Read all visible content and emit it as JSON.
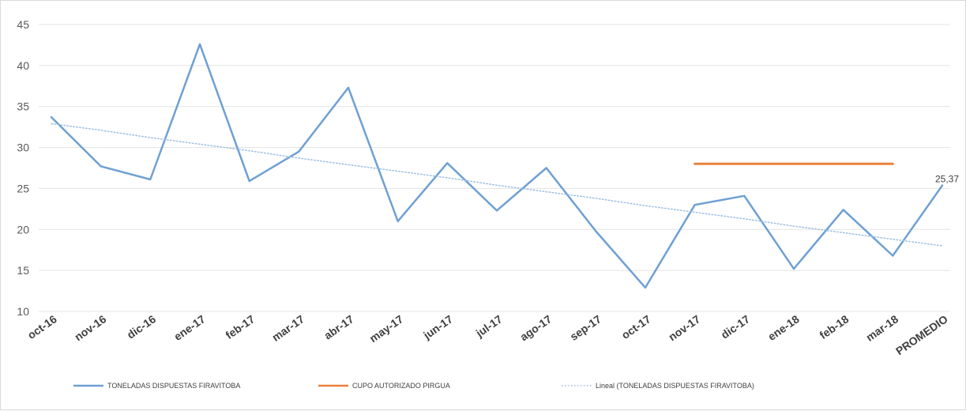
{
  "chart_data": {
    "type": "line",
    "categories": [
      "oct-16",
      "nov-16",
      "dic-16",
      "ene-17",
      "feb-17",
      "mar-17",
      "abr-17",
      "may-17",
      "jun-17",
      "jul-17",
      "ago-17",
      "sep-17",
      "oct-17",
      "nov-17",
      "dic-17",
      "ene-18",
      "feb-18",
      "mar-18",
      "PROMEDIO"
    ],
    "ylim": [
      10,
      45
    ],
    "yticks": [
      10,
      15,
      20,
      25,
      30,
      35,
      40,
      45
    ],
    "grid": true,
    "legend_position": "bottom",
    "series": [
      {
        "name": "TONELADAS DISPUESTAS FIRAVITOBA",
        "color": "#6fa0d2",
        "values": [
          33.7,
          27.7,
          26.1,
          42.6,
          25.9,
          29.5,
          37.3,
          21.0,
          28.1,
          22.3,
          27.5,
          19.8,
          12.9,
          23.0,
          24.1,
          15.2,
          22.4,
          16.8,
          25.37
        ]
      },
      {
        "name": "CUPO AUTORIZADO PIRGUA",
        "color": "#e8813a",
        "values": [
          null,
          null,
          null,
          null,
          null,
          null,
          null,
          null,
          null,
          null,
          null,
          null,
          null,
          28,
          28,
          28,
          28,
          28,
          null
        ]
      },
      {
        "name": "Lineal (TONELADAS DISPUESTAS FIRAVITOBA)",
        "color": "#9dbfe2",
        "style": "dotted",
        "values": [
          32.9,
          32.1,
          31.2,
          30.4,
          29.6,
          28.7,
          27.9,
          27.1,
          26.3,
          25.4,
          24.6,
          23.8,
          22.9,
          22.1,
          21.3,
          20.4,
          19.6,
          18.8,
          18.0
        ]
      }
    ],
    "data_label": {
      "series": 0,
      "index": 18,
      "text": "25,37"
    }
  }
}
